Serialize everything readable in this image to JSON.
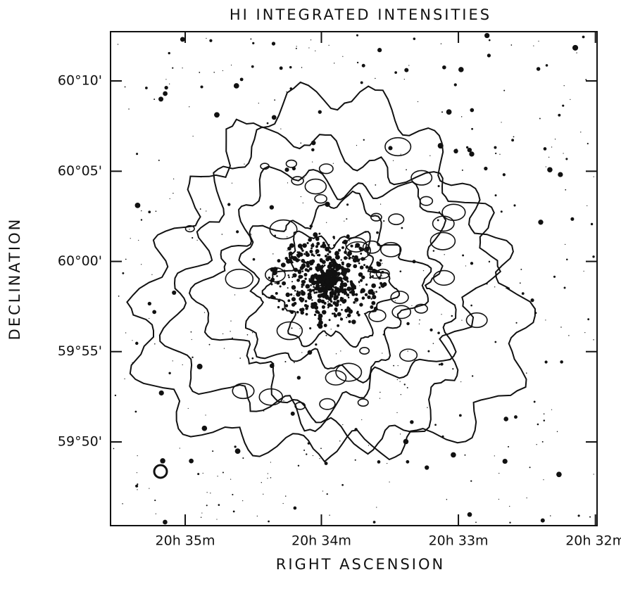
{
  "chart_data": {
    "type": "contour",
    "title": "HI INTEGRATED INTENSITIES",
    "xlabel": "RIGHT ASCENSION",
    "ylabel": "DECLINATION",
    "xlim": [
      20.5924,
      20.5331
    ],
    "ylim": [
      59.756,
      60.2122
    ],
    "xticks": [
      {
        "value": 20.5833,
        "label": "20h 35m"
      },
      {
        "value": 20.5667,
        "label": "20h 34m"
      },
      {
        "value": 20.55,
        "label": "20h 33m"
      },
      {
        "value": 20.5333,
        "label": "20h 32m"
      }
    ],
    "yticks": [
      {
        "value": 60.1667,
        "label": "60°10'"
      },
      {
        "value": 60.0833,
        "label": "60°05'"
      },
      {
        "value": 60.0,
        "label": "60°00'"
      },
      {
        "value": 59.9167,
        "label": "59°55'"
      },
      {
        "value": 59.8333,
        "label": "59°50'"
      }
    ],
    "color": "#111111"
  }
}
